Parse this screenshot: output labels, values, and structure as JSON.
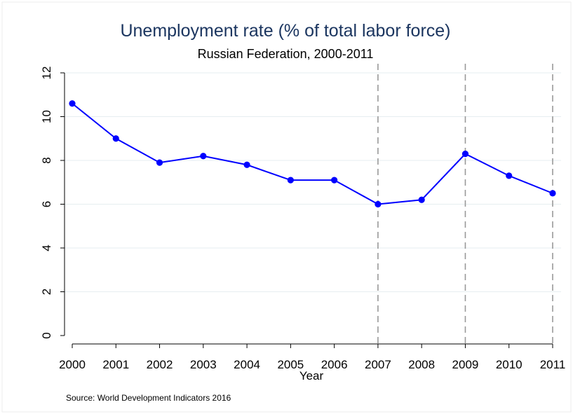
{
  "chart_data": {
    "type": "line",
    "title": "Unemployment rate (% of total labor force)",
    "subtitle": "Russian Federation, 2000-2011",
    "xlabel": "Year",
    "ylabel": "",
    "note": "Source: World Development Indicators 2016",
    "x": [
      2000,
      2001,
      2002,
      2003,
      2004,
      2005,
      2006,
      2007,
      2008,
      2009,
      2010,
      2011
    ],
    "x_tick_labels": [
      "2000",
      "2001",
      "2002",
      "2003",
      "2004",
      "2005",
      "2006",
      "2007",
      "2008",
      "2009",
      "2010",
      "2011"
    ],
    "y_tick_labels": [
      "0",
      "2",
      "4",
      "6",
      "8",
      "10",
      "12"
    ],
    "y_ticks": [
      0,
      2,
      4,
      6,
      8,
      10,
      12
    ],
    "ylim": [
      0,
      12
    ],
    "xlim": [
      2000,
      2011
    ],
    "series": [
      {
        "values": [
          10.6,
          9.0,
          7.9,
          8.2,
          7.8,
          7.1,
          7.1,
          6.0,
          6.2,
          8.3,
          7.3,
          6.5
        ]
      }
    ],
    "vertical_reference_lines": [
      2007,
      2009,
      2011
    ],
    "grid": "horizontal",
    "colors": {
      "line": "#0000ff",
      "marker": "#0000ff",
      "reference_line": "#999999",
      "grid": "#e6eef0",
      "title": "#1c3660",
      "frame": "#eeeeee"
    }
  }
}
